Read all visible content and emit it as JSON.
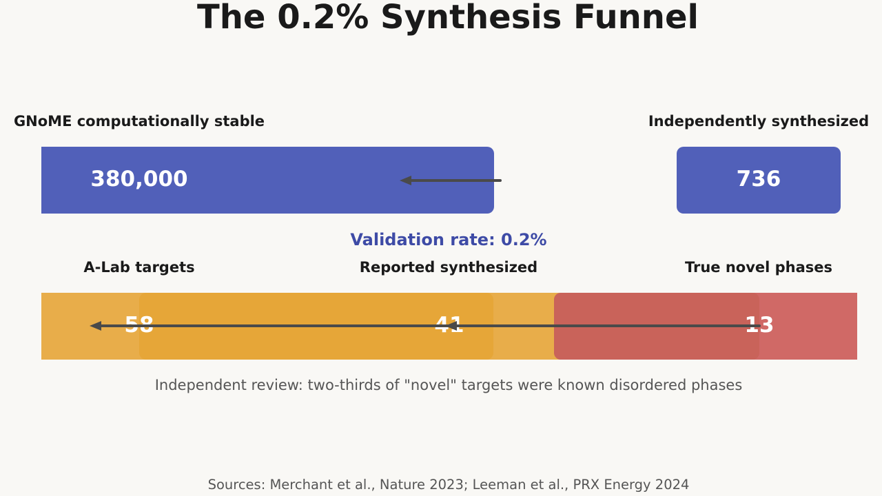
{
  "title": "The 0.2% Synthesis Funnel",
  "stages": {
    "gnome": {
      "label": "GNoME computationally stable",
      "value": "380,000"
    },
    "independent": {
      "label": "Independently synthesized",
      "value": "736"
    },
    "alab_targets": {
      "label": "A-Lab targets",
      "value": "58"
    },
    "reported": {
      "label": "Reported synthesized",
      "value": "41"
    },
    "novel": {
      "label": "True novel phases",
      "value": "13"
    }
  },
  "validation_rate": "Validation rate: 0.2%",
  "note": "Independent review: two-thirds of \"novel\" targets were known disordered phases",
  "sources": "Sources: Merchant et al., Nature 2023; Leeman et al., PRX Energy 2024",
  "colors": {
    "blue": "#5160b9",
    "orange": "#e8ad4a",
    "orange_dark": "#e6a638",
    "red": "#d06966",
    "red_dark": "#c9635a",
    "arrow": "#4a4a4a"
  }
}
